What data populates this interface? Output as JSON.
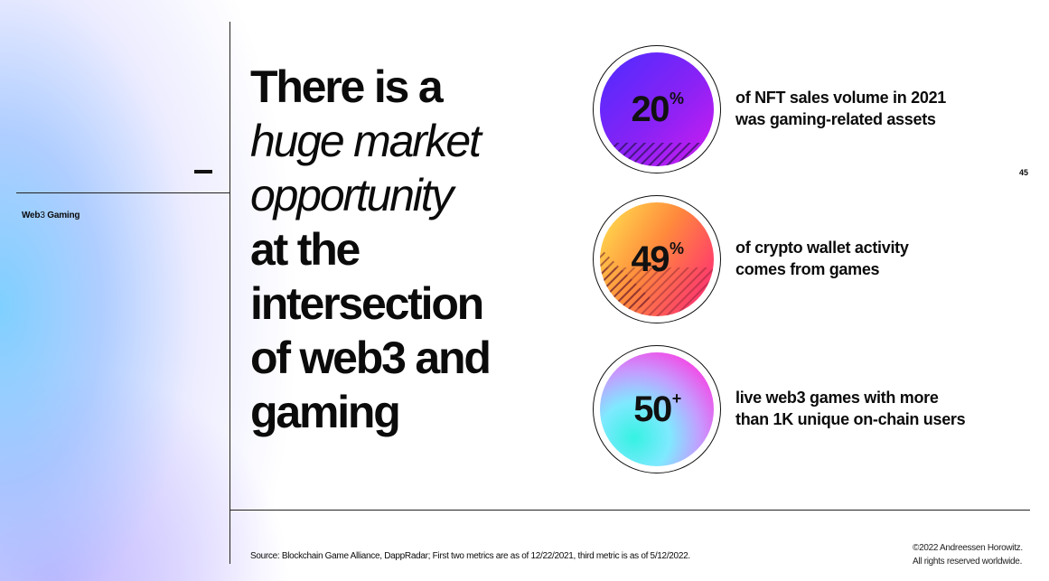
{
  "section": {
    "label_bold": "Web",
    "label_light": "3",
    "label_rest": " Gaming"
  },
  "page_number": "45",
  "headline": {
    "line1": "There is a",
    "line2": "huge market",
    "line3": "opportunity",
    "line4": "at the",
    "line5": "intersection",
    "line6": "of web3 and",
    "line7": "gaming"
  },
  "stats": [
    {
      "value": "20",
      "suffix": "%",
      "line1": "of NFT sales volume in 2021",
      "line2": "was gaming-related assets"
    },
    {
      "value": "49",
      "suffix": "%",
      "line1": "of crypto wallet activity",
      "line2": "comes from games"
    },
    {
      "value": "50",
      "suffix": "+",
      "line1": "live web3 games with more",
      "line2": "than 1K unique on-chain users"
    }
  ],
  "footer": {
    "source": "Source: Blockchain Game Alliance, DappRadar; First two metrics are as of 12/22/2021, third metric is as of 5/12/2022.",
    "copyright_line1": "©2022 Andreessen Horowitz.",
    "copyright_line2": "All rights reserved worldwide."
  },
  "colors": {
    "purple_start": "#5a2bff",
    "purple_end": "#c51cf0",
    "orange_start": "#ffd54a",
    "orange_end": "#ff3a6e",
    "cyan_start": "#39f0e8",
    "pink_end": "#ff3ddf"
  }
}
